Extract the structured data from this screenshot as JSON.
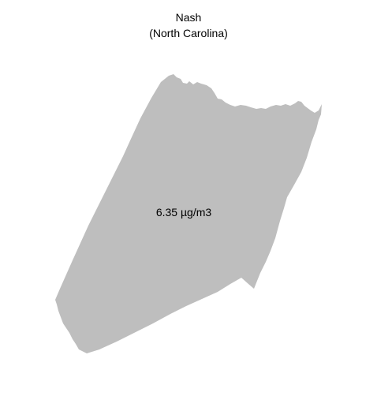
{
  "title": {
    "county": "Nash",
    "state": "(North Carolina)"
  },
  "map": {
    "region_fill": "#bebebe",
    "value_label": "6.35 µg/m3"
  }
}
